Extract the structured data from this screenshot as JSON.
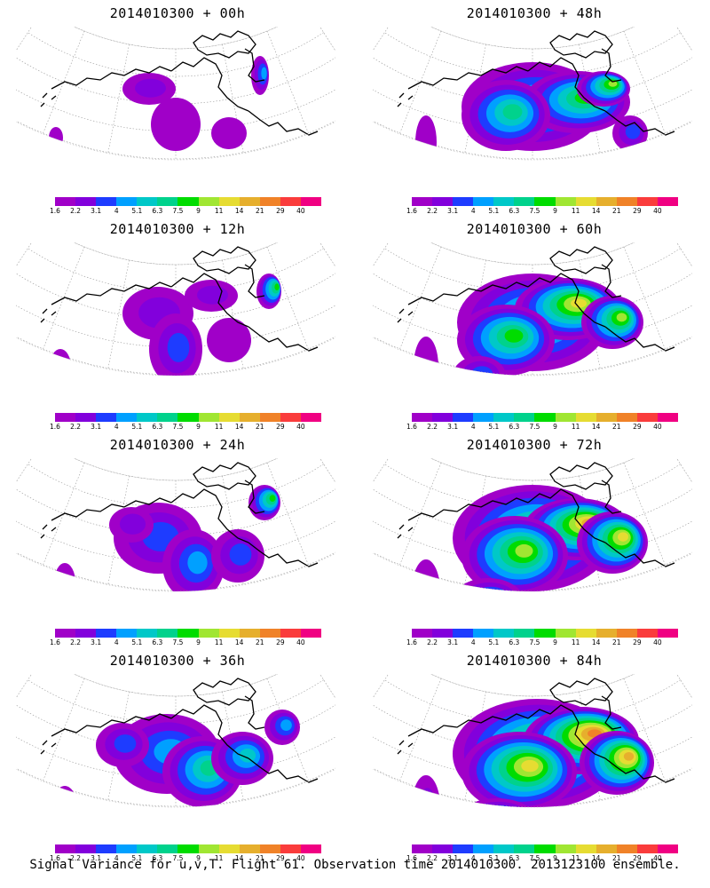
{
  "colorbar": {
    "colors": [
      "#a000c8",
      "#8200dc",
      "#1e3cff",
      "#00a0ff",
      "#00c8c8",
      "#00d28c",
      "#00dc00",
      "#a0e632",
      "#e6dc32",
      "#e6af2d",
      "#f08228",
      "#fa3c3c",
      "#f00082"
    ],
    "labels": [
      "1.6",
      "2.2",
      "3.1",
      "4",
      "5.1",
      "6.3",
      "7.5",
      "9",
      "11",
      "14",
      "21",
      "29",
      "40"
    ]
  },
  "panels": [
    {
      "title": "2014010300 + 00h",
      "intensity": 0
    },
    {
      "title": "2014010300 + 12h",
      "intensity": 1
    },
    {
      "title": "2014010300 + 24h",
      "intensity": 2
    },
    {
      "title": "2014010300 + 36h",
      "intensity": 3
    },
    {
      "title": "2014010300 + 48h",
      "intensity": 4
    },
    {
      "title": "2014010300 + 60h",
      "intensity": 5
    },
    {
      "title": "2014010300 + 72h",
      "intensity": 6
    },
    {
      "title": "2014010300 + 84h",
      "intensity": 7
    }
  ],
  "footer": "Signal Variance for u,v,T. Flight 61. Observation time 2014010300. 2013123100 ensemble."
}
